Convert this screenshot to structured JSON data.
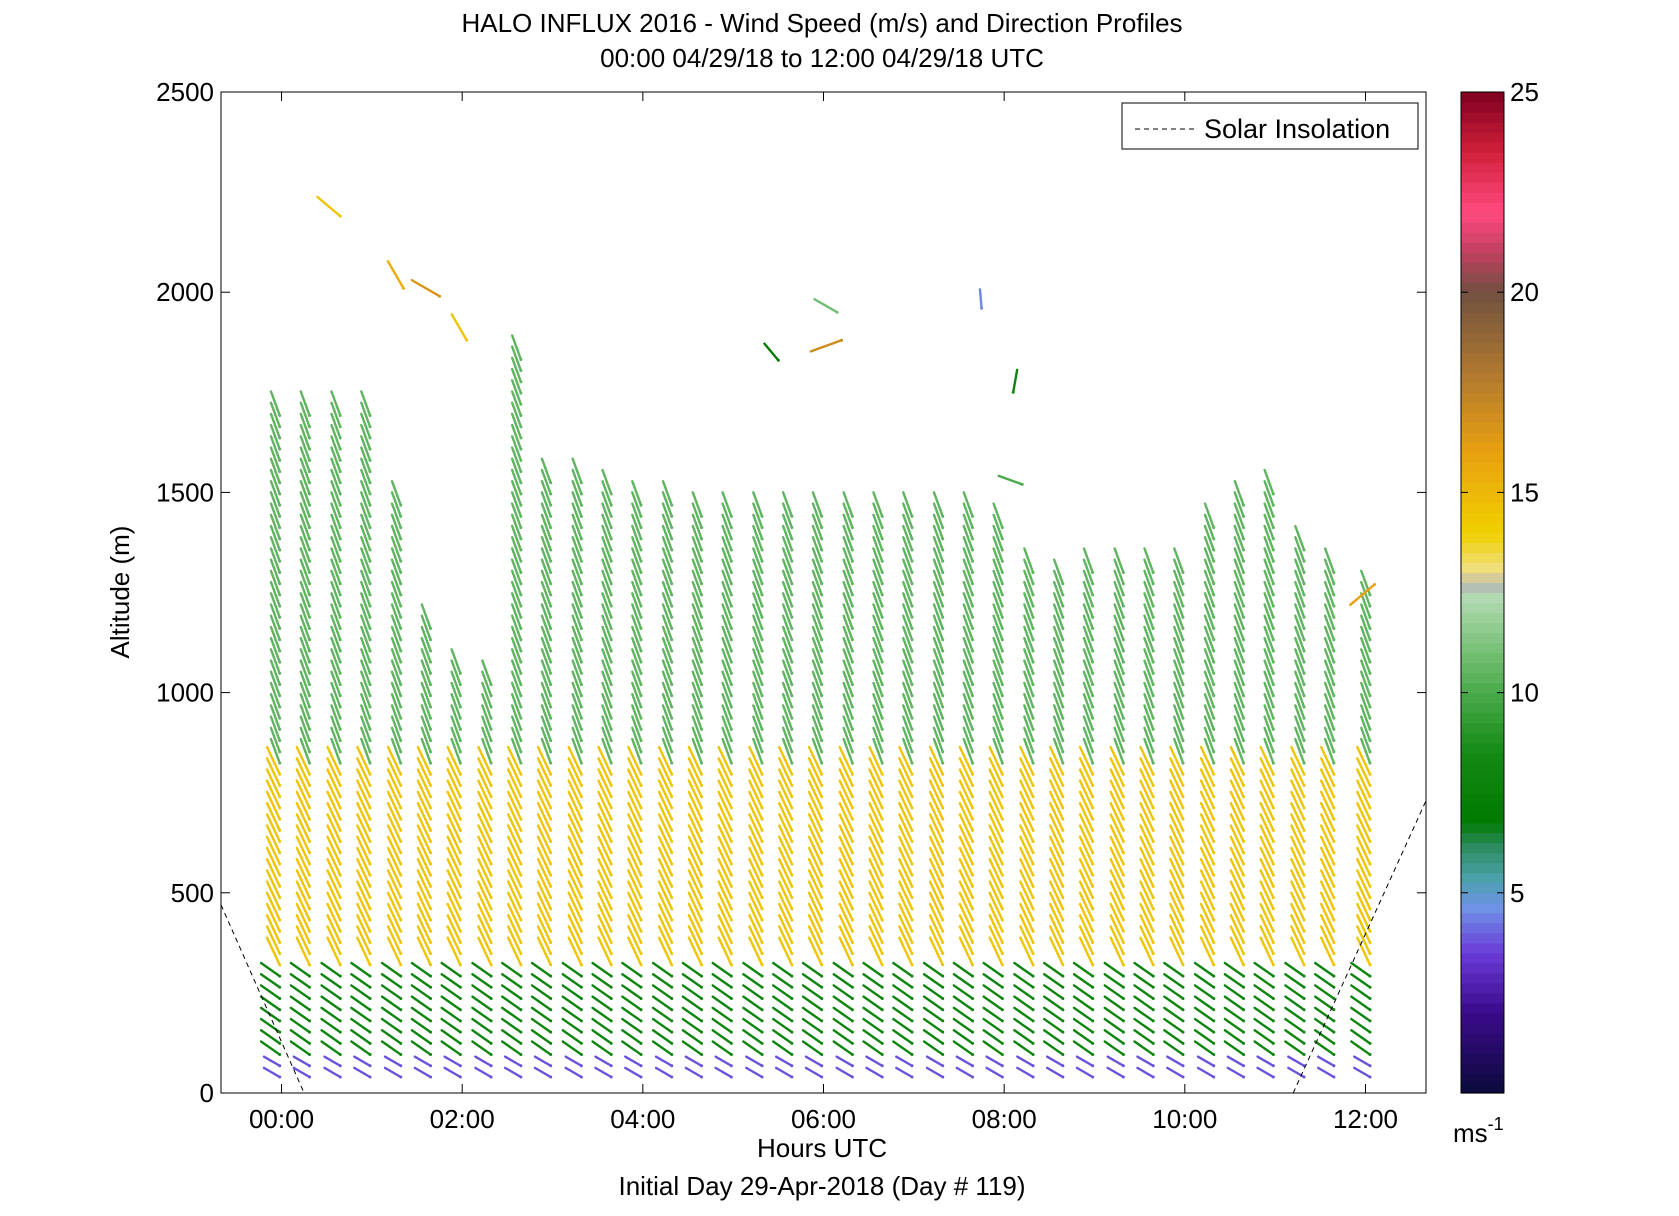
{
  "chart_data": {
    "type": "wind-barb-profile",
    "title": "HALO INFLUX 2016 - Wind Speed (m/s) and Direction Profiles",
    "subtitle": "00:00 04/29/18 to 12:00 04/29/18  UTC",
    "xlabel": "Hours UTC",
    "footer": "Initial Day 29-Apr-2018 (Day # 119)",
    "ylabel": "Altitude (m)",
    "xlim": [
      -0.67,
      12.67
    ],
    "ylim": [
      0,
      2500
    ],
    "x_ticks": [
      {
        "value": 0,
        "label": "00:00"
      },
      {
        "value": 2,
        "label": "02:00"
      },
      {
        "value": 4,
        "label": "04:00"
      },
      {
        "value": 6,
        "label": "06:00"
      },
      {
        "value": 8,
        "label": "08:00"
      },
      {
        "value": 10,
        "label": "10:00"
      },
      {
        "value": 12,
        "label": "12:00"
      }
    ],
    "y_ticks": [
      {
        "value": 0,
        "label": "0"
      },
      {
        "value": 500,
        "label": "500"
      },
      {
        "value": 1000,
        "label": "1000"
      },
      {
        "value": 1500,
        "label": "1500"
      },
      {
        "value": 2000,
        "label": "2000"
      },
      {
        "value": 2500,
        "label": "2500"
      }
    ],
    "legend": {
      "entries": [
        {
          "name": "Solar Insolation",
          "style": "dashed",
          "color": "#000000"
        }
      ],
      "placement": "top-right"
    },
    "colorbar": {
      "min": 0,
      "max": 25,
      "ticks": [
        {
          "value": 5,
          "label": "5"
        },
        {
          "value": 10,
          "label": "10"
        },
        {
          "value": 15,
          "label": "15"
        },
        {
          "value": 20,
          "label": "20"
        },
        {
          "value": 25,
          "label": "25"
        }
      ],
      "unit_base": "ms",
      "unit_exp": "-1",
      "stops": [
        {
          "v": 0,
          "c": "#0a0a3a"
        },
        {
          "v": 2,
          "c": "#3a0a8a"
        },
        {
          "v": 3.5,
          "c": "#6a3ad8"
        },
        {
          "v": 4.6,
          "c": "#7090e8"
        },
        {
          "v": 5.4,
          "c": "#4aa0a8"
        },
        {
          "v": 6.2,
          "c": "#2a8a5a"
        },
        {
          "v": 6.8,
          "c": "#007a00"
        },
        {
          "v": 8.5,
          "c": "#148a14"
        },
        {
          "v": 10,
          "c": "#4aaa4a"
        },
        {
          "v": 11.5,
          "c": "#8ac88a"
        },
        {
          "v": 12.5,
          "c": "#b8dcb8"
        },
        {
          "v": 12.7,
          "c": "#b0b0b0"
        },
        {
          "v": 13,
          "c": "#f0e08a"
        },
        {
          "v": 14,
          "c": "#f0d000"
        },
        {
          "v": 16,
          "c": "#e8a010"
        },
        {
          "v": 18,
          "c": "#b07830"
        },
        {
          "v": 20,
          "c": "#705040"
        },
        {
          "v": 21,
          "c": "#c04060"
        },
        {
          "v": 22,
          "c": "#ff4a80"
        },
        {
          "v": 23.5,
          "c": "#d0203a"
        },
        {
          "v": 25,
          "c": "#800020"
        }
      ]
    },
    "solar_insolation": {
      "segments": [
        [
          [
            -0.67,
            470
          ],
          [
            0.25,
            0
          ]
        ],
        [
          [
            11.2,
            0
          ],
          [
            12.67,
            730
          ]
        ]
      ]
    },
    "profile_times": [
      -0.02,
      0.31,
      0.65,
      0.98,
      1.32,
      1.65,
      1.98,
      2.32,
      2.65,
      2.98,
      3.32,
      3.65,
      3.98,
      4.32,
      4.65,
      4.98,
      5.32,
      5.65,
      5.98,
      6.32,
      6.65,
      6.98,
      7.32,
      7.65,
      7.98,
      8.32,
      8.65,
      8.98,
      9.32,
      9.65,
      9.98,
      10.32,
      10.65,
      10.98,
      11.32,
      11.65,
      12.05
    ],
    "profile_top_m": [
      1700,
      1700,
      1700,
      1700,
      1480,
      1180,
      1050,
      1020,
      1850,
      1550,
      1550,
      1500,
      1480,
      1480,
      1450,
      1460,
      1460,
      1450,
      1450,
      1450,
      1450,
      1450,
      1450,
      1450,
      1420,
      1300,
      1280,
      1320,
      1320,
      1320,
      1320,
      1420,
      1480,
      1500,
      1380,
      1300,
      1250
    ],
    "layers": [
      {
        "from_m": 0,
        "to_m": 90,
        "speed_ms": 3.8,
        "direction_deg": 300
      },
      {
        "from_m": 90,
        "to_m": 300,
        "speed_ms": 8.0,
        "direction_deg": 305
      },
      {
        "from_m": 300,
        "to_m": 800,
        "speed_ms": 14.5,
        "direction_deg": 335
      },
      {
        "from_m": 800,
        "to_m": 1500,
        "speed_ms": 10.5,
        "direction_deg": 340
      }
    ],
    "upper_level_samples": [
      {
        "hour": 0.65,
        "alt_m": 2190,
        "speed_ms": 14.5,
        "direction_deg": 310
      },
      {
        "hour": 1.35,
        "alt_m": 2010,
        "speed_ms": 15.5,
        "direction_deg": 330
      },
      {
        "hour": 1.75,
        "alt_m": 1990,
        "speed_ms": 16.5,
        "direction_deg": 300
      },
      {
        "hour": 2.05,
        "alt_m": 1880,
        "speed_ms": 14.5,
        "direction_deg": 330
      },
      {
        "hour": 5.5,
        "alt_m": 1830,
        "speed_ms": 7.0,
        "direction_deg": 320
      },
      {
        "hour": 6.2,
        "alt_m": 1880,
        "speed_ms": 17.0,
        "direction_deg": 250
      },
      {
        "hour": 6.15,
        "alt_m": 1950,
        "speed_ms": 11.0,
        "direction_deg": 300
      },
      {
        "hour": 7.75,
        "alt_m": 1960,
        "speed_ms": 4.5,
        "direction_deg": 355
      },
      {
        "hour": 8.1,
        "alt_m": 1750,
        "speed_ms": 8.0,
        "direction_deg": 10
      },
      {
        "hour": 8.2,
        "alt_m": 1520,
        "speed_ms": 10.0,
        "direction_deg": 290
      },
      {
        "hour": 12.1,
        "alt_m": 1270,
        "speed_ms": 16.0,
        "direction_deg": 230
      }
    ]
  }
}
